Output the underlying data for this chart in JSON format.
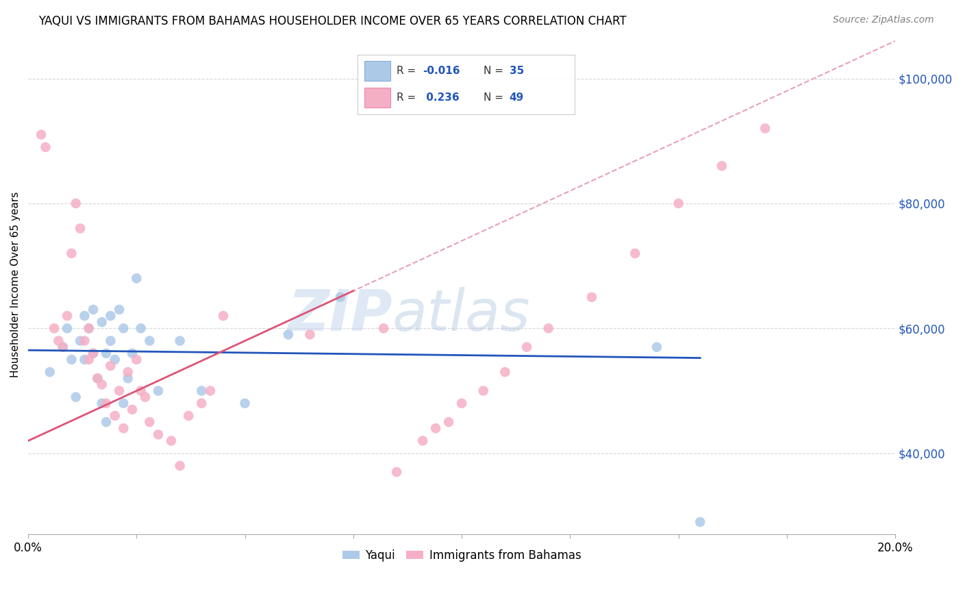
{
  "title": "YAQUI VS IMMIGRANTS FROM BAHAMAS HOUSEHOLDER INCOME OVER 65 YEARS CORRELATION CHART",
  "source": "Source: ZipAtlas.com",
  "ylabel": "Householder Income Over 65 years",
  "xlim": [
    0.0,
    0.2
  ],
  "ylim": [
    27000,
    107000
  ],
  "yticks": [
    40000,
    60000,
    80000,
    100000
  ],
  "ytick_labels": [
    "$40,000",
    "$60,000",
    "$80,000",
    "$100,000"
  ],
  "xticks": [
    0.0,
    0.025,
    0.05,
    0.075,
    0.1,
    0.125,
    0.15,
    0.175,
    0.2
  ],
  "xtick_labels": [
    "0.0%",
    "",
    "",
    "",
    "",
    "",
    "",
    "",
    "20.0%"
  ],
  "watermark_zip": "ZIP",
  "watermark_atlas": "atlas",
  "color_yaqui": "#adc9e8",
  "color_bahamas": "#f5afc5",
  "color_yaqui_line": "#2255bb",
  "color_bahamas_solid": "#dd5577",
  "color_bahamas_dashed": "#e8a0b8",
  "yaqui_intercept": 56500,
  "yaqui_slope": -8000,
  "bahamas_intercept": 42000,
  "bahamas_slope": 320000,
  "yaqui_x": [
    0.005,
    0.008,
    0.009,
    0.01,
    0.011,
    0.012,
    0.013,
    0.013,
    0.014,
    0.015,
    0.015,
    0.016,
    0.017,
    0.017,
    0.018,
    0.018,
    0.019,
    0.019,
    0.02,
    0.021,
    0.022,
    0.022,
    0.023,
    0.024,
    0.025,
    0.026,
    0.028,
    0.03,
    0.035,
    0.04,
    0.05,
    0.06,
    0.145,
    0.155,
    0.072
  ],
  "yaqui_y": [
    53000,
    57000,
    60000,
    55000,
    49000,
    58000,
    62000,
    55000,
    60000,
    63000,
    56000,
    52000,
    48000,
    61000,
    56000,
    45000,
    58000,
    62000,
    55000,
    63000,
    60000,
    48000,
    52000,
    56000,
    68000,
    60000,
    58000,
    50000,
    58000,
    50000,
    48000,
    59000,
    57000,
    29000,
    65000
  ],
  "bahamas_x": [
    0.003,
    0.004,
    0.006,
    0.007,
    0.008,
    0.009,
    0.01,
    0.011,
    0.012,
    0.013,
    0.014,
    0.014,
    0.015,
    0.016,
    0.017,
    0.018,
    0.019,
    0.02,
    0.021,
    0.022,
    0.023,
    0.024,
    0.025,
    0.026,
    0.027,
    0.028,
    0.03,
    0.033,
    0.035,
    0.037,
    0.04,
    0.042,
    0.045,
    0.065,
    0.082,
    0.085,
    0.091,
    0.094,
    0.097,
    0.1,
    0.105,
    0.11,
    0.115,
    0.12,
    0.13,
    0.14,
    0.15,
    0.16,
    0.17
  ],
  "bahamas_y": [
    91000,
    89000,
    60000,
    58000,
    57000,
    62000,
    72000,
    80000,
    76000,
    58000,
    60000,
    55000,
    56000,
    52000,
    51000,
    48000,
    54000,
    46000,
    50000,
    44000,
    53000,
    47000,
    55000,
    50000,
    49000,
    45000,
    43000,
    42000,
    38000,
    46000,
    48000,
    50000,
    62000,
    59000,
    60000,
    37000,
    42000,
    44000,
    45000,
    48000,
    50000,
    53000,
    57000,
    60000,
    65000,
    72000,
    80000,
    86000,
    92000
  ]
}
